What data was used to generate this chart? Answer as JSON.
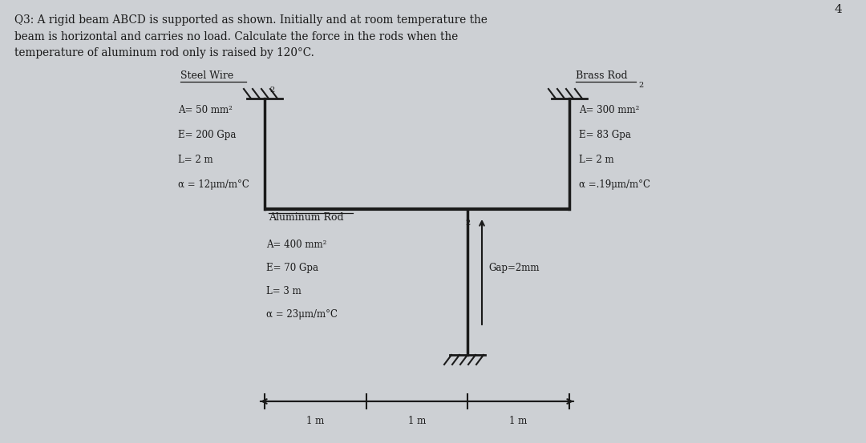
{
  "bg_color": "#cdd0d4",
  "text_color": "#1a1a1a",
  "title_text": "Q3: A rigid beam ABCD is supported as shown. Initially and at room temperature the\nbeam is horizontal and carries no load. Calculate the force in the rods when the\ntemperature of aluminum rod only is raised by 120°C.",
  "steel_label": "Steel Wire",
  "steel_props": [
    "A= 50 mm²",
    "E= 200 Gpa",
    "L= 2 m",
    "α = 12μm/m°C"
  ],
  "brass_label": "Brass Rod",
  "brass_props": [
    "A= 300 mm²",
    "E= 83 Gpa",
    "L= 2 m",
    "α =.19μm/m°C"
  ],
  "alum_label": "Aluminum Rod",
  "alum_props": [
    "A= 400 mm²",
    "E= 70 Gpa",
    "L= 3 m",
    "α = 23μm/m°C"
  ],
  "gap_label": "Gap=2mm",
  "dim_label": "1 m",
  "beam_color": "#1a1a1a",
  "page_num": "4"
}
